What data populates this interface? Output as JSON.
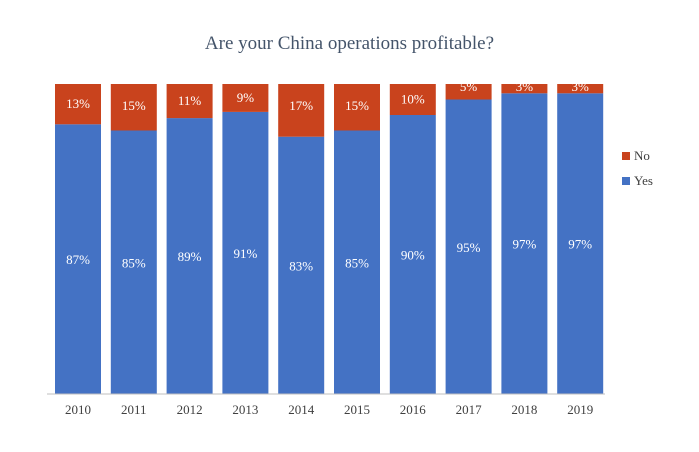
{
  "chart_data": {
    "type": "bar",
    "stacked": true,
    "percent": true,
    "title": "Are your China operations profitable?",
    "xlabel": "",
    "ylabel": "",
    "ylim": [
      0,
      100
    ],
    "grid": false,
    "legend": "right",
    "categories": [
      "2010",
      "2011",
      "2012",
      "2013",
      "2014",
      "2015",
      "2016",
      "2017",
      "2018",
      "2019"
    ],
    "series": [
      {
        "name": "Yes",
        "color": "#4472c4",
        "values": [
          87,
          85,
          89,
          91,
          83,
          85,
          90,
          95,
          97,
          97
        ],
        "labels": [
          "87%",
          "85%",
          "89%",
          "91%",
          "83%",
          "85%",
          "90%",
          "95%",
          "97%",
          "97%"
        ]
      },
      {
        "name": "No",
        "color": "#c9431d",
        "values": [
          13,
          15,
          11,
          9,
          17,
          15,
          10,
          5,
          3,
          3
        ],
        "labels": [
          "13%",
          "15%",
          "11%",
          "9%",
          "17%",
          "15%",
          "10%",
          "5%",
          "3%",
          "3%"
        ]
      }
    ],
    "legend_entries": [
      "No",
      "Yes"
    ]
  }
}
